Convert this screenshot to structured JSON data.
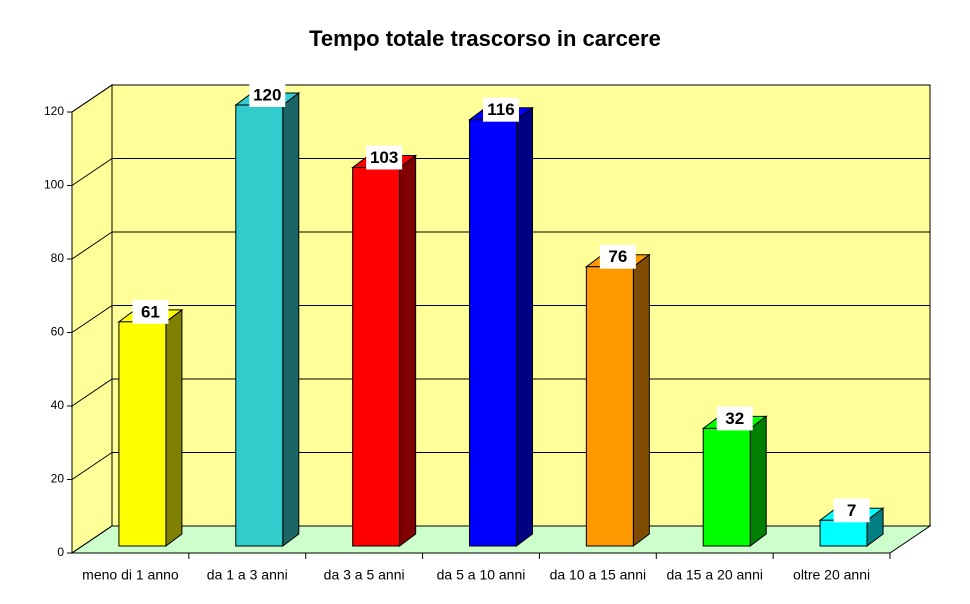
{
  "chart_data": {
    "type": "bar3d",
    "title": "Tempo totale trascorso in carcere",
    "categories": [
      "meno di 1 anno",
      "da 1 a 3 anni",
      "da 3 a 5 anni",
      "da 5 a 10 anni",
      "da 10 a 15 anni",
      "da 15 a 20 anni",
      "oltre 20 anni"
    ],
    "values": [
      61,
      120,
      103,
      116,
      76,
      32,
      7
    ],
    "colors": [
      "#ffff00",
      "#33cccc",
      "#ff0000",
      "#0000ff",
      "#ff9900",
      "#00ff00",
      "#00ffff"
    ],
    "ylim": [
      0,
      120
    ],
    "yticks": [
      0,
      20,
      40,
      60,
      80,
      100,
      120
    ],
    "grid": true
  }
}
